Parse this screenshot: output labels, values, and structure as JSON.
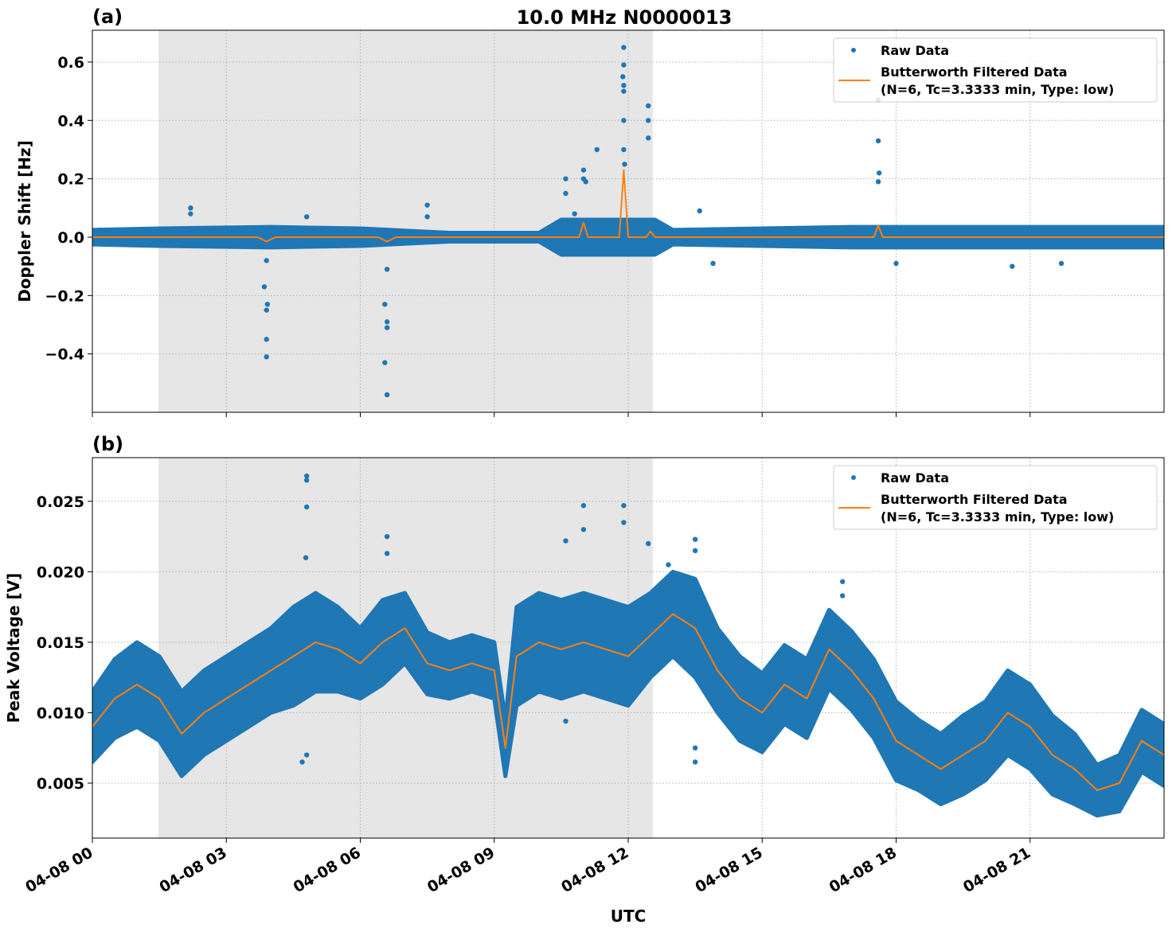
{
  "chart_data": {
    "type": "scatter",
    "title": "10.0 MHz N0000013",
    "xlabel": "UTC",
    "x_units": "hours since 04-08 00 UTC",
    "xlim": [
      0,
      24
    ],
    "x_ticks": [
      0,
      3,
      6,
      9,
      12,
      15,
      18,
      21
    ],
    "x_tick_labels": [
      "04-08 00",
      "04-08 03",
      "04-08 06",
      "04-08 09",
      "04-08 12",
      "04-08 15",
      "04-08 18",
      "04-08 21"
    ],
    "shaded_interval": [
      1.48,
      12.55
    ],
    "grid": true,
    "colors": {
      "raw": "#1f77b4",
      "filtered": "#ff7f0e",
      "shade": "#e6e6e6"
    },
    "legend": {
      "placement": "top-right",
      "raw_label": "Raw Data",
      "filtered_label_line1": "Butterworth Filtered Data",
      "filtered_label_line2": "(N=6, Tc=3.3333 min, Type: low)"
    },
    "panels": [
      {
        "tag": "(a)",
        "ylabel": "Doppler Shift [Hz]",
        "ylim": [
          -0.6,
          0.709
        ],
        "y_ticks": [
          -0.4,
          -0.2,
          0.0,
          0.2,
          0.4,
          0.6
        ],
        "y_tick_labels": [
          "−0.4",
          "−0.2",
          "0.0",
          "0.2",
          "0.4",
          "0.6"
        ],
        "raw_band": {
          "x": [
            0,
            1.5,
            4,
            6,
            8,
            10,
            10.5,
            12.6,
            13,
            17,
            24
          ],
          "center": [
            0,
            0,
            0,
            0,
            0,
            0,
            0,
            0,
            0,
            0,
            0
          ],
          "spread": [
            0.025,
            0.03,
            0.035,
            0.03,
            0.015,
            0.015,
            0.06,
            0.06,
            0.025,
            0.035,
            0.035
          ]
        },
        "raw_outliers": [
          [
            2.2,
            0.1
          ],
          [
            2.2,
            0.08
          ],
          [
            3.9,
            -0.08
          ],
          [
            3.85,
            -0.17
          ],
          [
            3.9,
            -0.25
          ],
          [
            3.92,
            -0.23
          ],
          [
            3.9,
            -0.35
          ],
          [
            3.9,
            -0.41
          ],
          [
            4.8,
            0.07
          ],
          [
            6.6,
            -0.11
          ],
          [
            6.55,
            -0.23
          ],
          [
            6.6,
            -0.29
          ],
          [
            6.6,
            -0.31
          ],
          [
            6.55,
            -0.43
          ],
          [
            6.6,
            -0.54
          ],
          [
            7.5,
            0.11
          ],
          [
            7.5,
            0.07
          ],
          [
            10.6,
            0.2
          ],
          [
            10.6,
            0.15
          ],
          [
            10.8,
            0.08
          ],
          [
            11.0,
            0.2
          ],
          [
            11.0,
            0.23
          ],
          [
            11.05,
            0.19
          ],
          [
            11.3,
            0.3
          ],
          [
            11.9,
            0.65
          ],
          [
            11.9,
            0.59
          ],
          [
            11.88,
            0.55
          ],
          [
            11.9,
            0.52
          ],
          [
            11.9,
            0.5
          ],
          [
            11.9,
            0.4
          ],
          [
            11.9,
            0.3
          ],
          [
            11.92,
            0.25
          ],
          [
            12.45,
            0.45
          ],
          [
            12.45,
            0.4
          ],
          [
            12.45,
            0.34
          ],
          [
            17.6,
            0.47
          ],
          [
            17.6,
            0.33
          ],
          [
            17.62,
            0.22
          ],
          [
            17.6,
            0.19
          ],
          [
            13.6,
            0.09
          ],
          [
            13.9,
            -0.09
          ],
          [
            18.0,
            -0.09
          ],
          [
            20.6,
            -0.1
          ],
          [
            21.7,
            -0.09
          ]
        ],
        "filtered": {
          "x": [
            0,
            3.7,
            3.9,
            4.1,
            6.4,
            6.6,
            6.8,
            10.9,
            11.0,
            11.1,
            11.8,
            11.9,
            12.0,
            12.4,
            12.5,
            12.6,
            17.5,
            17.6,
            17.7,
            24
          ],
          "y": [
            0,
            0,
            -0.015,
            0,
            0,
            -0.015,
            0,
            0,
            0.05,
            0,
            0,
            0.23,
            0,
            0,
            0.02,
            0,
            0,
            0.04,
            0,
            0
          ]
        }
      },
      {
        "tag": "(b)",
        "ylabel": "Peak Voltage [V]",
        "ylim": [
          0.0011,
          0.0281
        ],
        "y_ticks": [
          0.005,
          0.01,
          0.015,
          0.02,
          0.025
        ],
        "y_tick_labels": [
          "0.005",
          "0.010",
          "0.015",
          "0.020",
          "0.025"
        ],
        "raw_band": {
          "x": [
            0,
            0.5,
            1,
            1.5,
            2,
            2.5,
            3,
            3.5,
            4,
            4.5,
            5,
            5.5,
            6,
            6.5,
            7,
            7.5,
            8,
            8.5,
            9,
            9.25,
            9.5,
            10,
            10.5,
            11,
            11.5,
            12,
            12.5,
            13,
            13.5,
            14,
            14.5,
            15,
            15.5,
            16,
            16.5,
            17,
            17.5,
            18,
            18.5,
            19,
            19.5,
            20,
            20.5,
            21,
            21.5,
            22,
            22.5,
            23,
            23.5,
            24
          ],
          "center": [
            0.009,
            0.011,
            0.012,
            0.011,
            0.0085,
            0.01,
            0.011,
            0.012,
            0.013,
            0.014,
            0.015,
            0.0145,
            0.0135,
            0.015,
            0.016,
            0.0135,
            0.013,
            0.0135,
            0.013,
            0.0075,
            0.014,
            0.015,
            0.0145,
            0.015,
            0.0145,
            0.014,
            0.0155,
            0.017,
            0.016,
            0.013,
            0.011,
            0.01,
            0.012,
            0.011,
            0.0145,
            0.013,
            0.011,
            0.008,
            0.007,
            0.006,
            0.007,
            0.008,
            0.01,
            0.009,
            0.007,
            0.006,
            0.0045,
            0.005,
            0.008,
            0.007
          ],
          "spread": [
            0.0025,
            0.0028,
            0.003,
            0.003,
            0.003,
            0.003,
            0.003,
            0.003,
            0.003,
            0.0035,
            0.0035,
            0.003,
            0.0025,
            0.003,
            0.0025,
            0.0022,
            0.002,
            0.002,
            0.002,
            0.002,
            0.0035,
            0.0035,
            0.0035,
            0.0035,
            0.0035,
            0.0035,
            0.003,
            0.003,
            0.0035,
            0.003,
            0.003,
            0.0028,
            0.0028,
            0.0028,
            0.0028,
            0.0028,
            0.0028,
            0.0028,
            0.0025,
            0.0025,
            0.0028,
            0.0028,
            0.003,
            0.003,
            0.0028,
            0.0025,
            0.0018,
            0.002,
            0.0022,
            0.0022
          ]
        },
        "raw_outliers": [
          [
            4.8,
            0.0268
          ],
          [
            4.8,
            0.0265
          ],
          [
            4.8,
            0.0246
          ],
          [
            4.78,
            0.021
          ],
          [
            4.7,
            0.0065
          ],
          [
            4.8,
            0.007
          ],
          [
            6.6,
            0.0225
          ],
          [
            6.6,
            0.0213
          ],
          [
            10.6,
            0.0222
          ],
          [
            10.6,
            0.0094
          ],
          [
            11.0,
            0.0247
          ],
          [
            11.0,
            0.023
          ],
          [
            11.9,
            0.0247
          ],
          [
            11.9,
            0.0235
          ],
          [
            12.45,
            0.022
          ],
          [
            13.5,
            0.0223
          ],
          [
            13.5,
            0.0215
          ],
          [
            13.5,
            0.0065
          ],
          [
            13.5,
            0.0075
          ],
          [
            16.8,
            0.0193
          ],
          [
            16.8,
            0.0183
          ],
          [
            12.9,
            0.0205
          ]
        ],
        "filtered": {
          "x": [
            0,
            0.5,
            1,
            1.5,
            2,
            2.5,
            3,
            3.5,
            4,
            4.5,
            5,
            5.5,
            6,
            6.5,
            7,
            7.5,
            8,
            8.5,
            9,
            9.25,
            9.5,
            10,
            10.5,
            11,
            11.5,
            12,
            12.5,
            13,
            13.5,
            14,
            14.5,
            15,
            15.5,
            16,
            16.5,
            17,
            17.5,
            18,
            18.5,
            19,
            19.5,
            20,
            20.5,
            21,
            21.5,
            22,
            22.5,
            23,
            23.5,
            24
          ],
          "y": [
            0.009,
            0.011,
            0.012,
            0.011,
            0.0085,
            0.01,
            0.011,
            0.012,
            0.013,
            0.014,
            0.015,
            0.0145,
            0.0135,
            0.015,
            0.016,
            0.0135,
            0.013,
            0.0135,
            0.013,
            0.0075,
            0.014,
            0.015,
            0.0145,
            0.015,
            0.0145,
            0.014,
            0.0155,
            0.017,
            0.016,
            0.013,
            0.011,
            0.01,
            0.012,
            0.011,
            0.0145,
            0.013,
            0.011,
            0.008,
            0.007,
            0.006,
            0.007,
            0.008,
            0.01,
            0.009,
            0.007,
            0.006,
            0.0045,
            0.005,
            0.008,
            0.007
          ]
        }
      }
    ]
  }
}
